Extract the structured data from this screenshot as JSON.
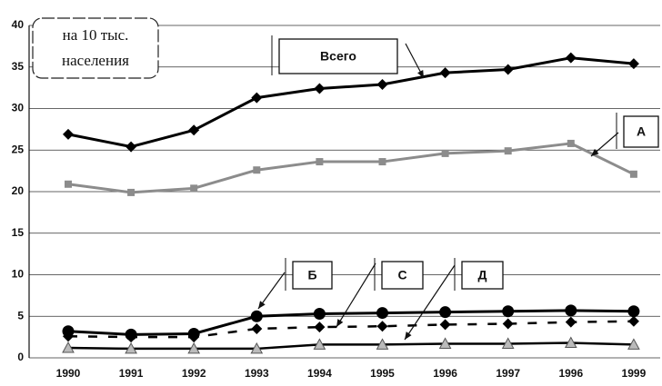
{
  "chart_data": {
    "type": "line",
    "annotation": [
      "на 10 тыс.",
      "населения"
    ],
    "categories": [
      "1990",
      "1991",
      "1992",
      "1993",
      "1994",
      "1995",
      "1996",
      "1997",
      "1996",
      "1999"
    ],
    "series": [
      {
        "name": "Всего",
        "color": "#000000",
        "marker": "diamond",
        "line_style": "solid",
        "values": [
          26.9,
          25.4,
          27.4,
          31.3,
          32.4,
          32.9,
          34.3,
          34.7,
          36.1,
          35.4
        ]
      },
      {
        "name": "А",
        "color": "#8c8c8c",
        "marker": "square",
        "line_style": "solid",
        "values": [
          20.9,
          19.9,
          20.4,
          22.6,
          23.6,
          23.6,
          24.6,
          24.9,
          25.8,
          22.1
        ]
      },
      {
        "name": "Б",
        "color": "#000000",
        "marker": "circle",
        "line_style": "solid",
        "values": [
          3.2,
          2.8,
          2.9,
          5.0,
          5.3,
          5.4,
          5.5,
          5.6,
          5.7,
          5.6
        ]
      },
      {
        "name": "С",
        "color": "#000000",
        "marker": "diamond",
        "line_style": "dashed",
        "values": [
          2.6,
          2.5,
          2.5,
          3.5,
          3.7,
          3.8,
          4.0,
          4.1,
          4.3,
          4.4
        ]
      },
      {
        "name": "Д",
        "color": "#8c8c8c",
        "marker": "triangle",
        "line_style": "solid",
        "values": [
          1.2,
          1.1,
          1.1,
          1.1,
          1.6,
          1.6,
          1.7,
          1.7,
          1.8,
          1.6
        ]
      }
    ],
    "ylim": [
      0,
      40
    ],
    "yticks": [
      0,
      5,
      10,
      15,
      20,
      25,
      30,
      35,
      40
    ],
    "grid": true
  }
}
